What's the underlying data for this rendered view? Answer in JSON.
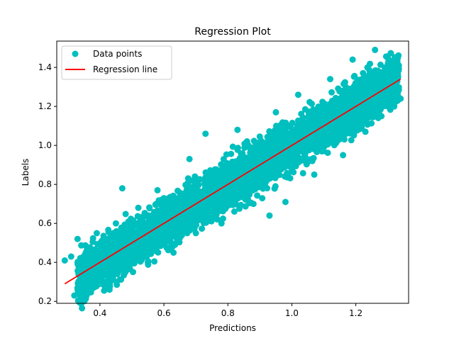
{
  "chart_data": {
    "type": "scatter",
    "title": "Regression Plot",
    "xlabel": "Predictions",
    "ylabel": "Labels",
    "xlim": [
      0.265,
      1.365
    ],
    "ylim": [
      0.19,
      1.535
    ],
    "xticks": [
      0.4,
      0.6,
      0.8,
      1.0,
      1.2
    ],
    "xtick_labels": [
      "0.4",
      "0.6",
      "0.8",
      "1.0",
      "1.2"
    ],
    "yticks": [
      0.2,
      0.4,
      0.6,
      0.8,
      1.0,
      1.2,
      1.4
    ],
    "ytick_labels": [
      "0.2",
      "0.4",
      "0.6",
      "0.8",
      "1.0",
      "1.2",
      "1.4"
    ],
    "grid": false,
    "legend_position": "upper-left",
    "series": [
      {
        "name": "Data points",
        "kind": "scatter",
        "color": "#00bfbf",
        "points": [
          {
            "x": 0.29,
            "y": 0.41
          },
          {
            "x": 0.31,
            "y": 0.43
          },
          {
            "x": 0.32,
            "y": 0.23
          },
          {
            "x": 0.33,
            "y": 0.52
          },
          {
            "x": 0.34,
            "y": 0.28
          },
          {
            "x": 0.35,
            "y": 0.37
          },
          {
            "x": 0.36,
            "y": 0.47
          },
          {
            "x": 0.38,
            "y": 0.32
          },
          {
            "x": 0.39,
            "y": 0.55
          },
          {
            "x": 0.4,
            "y": 0.29
          },
          {
            "x": 0.42,
            "y": 0.44
          },
          {
            "x": 0.43,
            "y": 0.26
          },
          {
            "x": 0.45,
            "y": 0.6
          },
          {
            "x": 0.47,
            "y": 0.78
          },
          {
            "x": 0.48,
            "y": 0.35
          },
          {
            "x": 0.52,
            "y": 0.68
          },
          {
            "x": 0.55,
            "y": 0.4
          },
          {
            "x": 0.58,
            "y": 0.77
          },
          {
            "x": 0.63,
            "y": 0.45
          },
          {
            "x": 0.68,
            "y": 0.93
          },
          {
            "x": 0.7,
            "y": 0.55
          },
          {
            "x": 0.73,
            "y": 1.06
          },
          {
            "x": 0.78,
            "y": 0.6
          },
          {
            "x": 0.83,
            "y": 1.08
          },
          {
            "x": 0.88,
            "y": 0.7
          },
          {
            "x": 0.93,
            "y": 0.64
          },
          {
            "x": 0.95,
            "y": 1.17
          },
          {
            "x": 0.98,
            "y": 0.71
          },
          {
            "x": 1.02,
            "y": 1.26
          },
          {
            "x": 1.07,
            "y": 0.85
          },
          {
            "x": 1.12,
            "y": 1.34
          },
          {
            "x": 1.16,
            "y": 0.95
          },
          {
            "x": 1.19,
            "y": 1.44
          },
          {
            "x": 1.23,
            "y": 1.07
          },
          {
            "x": 1.26,
            "y": 1.49
          },
          {
            "x": 1.28,
            "y": 1.15
          },
          {
            "x": 1.3,
            "y": 1.45
          },
          {
            "x": 1.32,
            "y": 1.2
          },
          {
            "x": 1.33,
            "y": 1.37
          },
          {
            "x": 1.34,
            "y": 1.24
          }
        ],
        "cloud": {
          "x_range": [
            0.33,
            1.335
          ],
          "center_intercept": -0.03,
          "center_slope": 1.03,
          "half_band": 0.19
        }
      },
      {
        "name": "Regression line",
        "kind": "line",
        "color": "#ff0000",
        "x": [
          0.29,
          1.34
        ],
        "y": [
          0.29,
          1.34
        ]
      }
    ]
  }
}
